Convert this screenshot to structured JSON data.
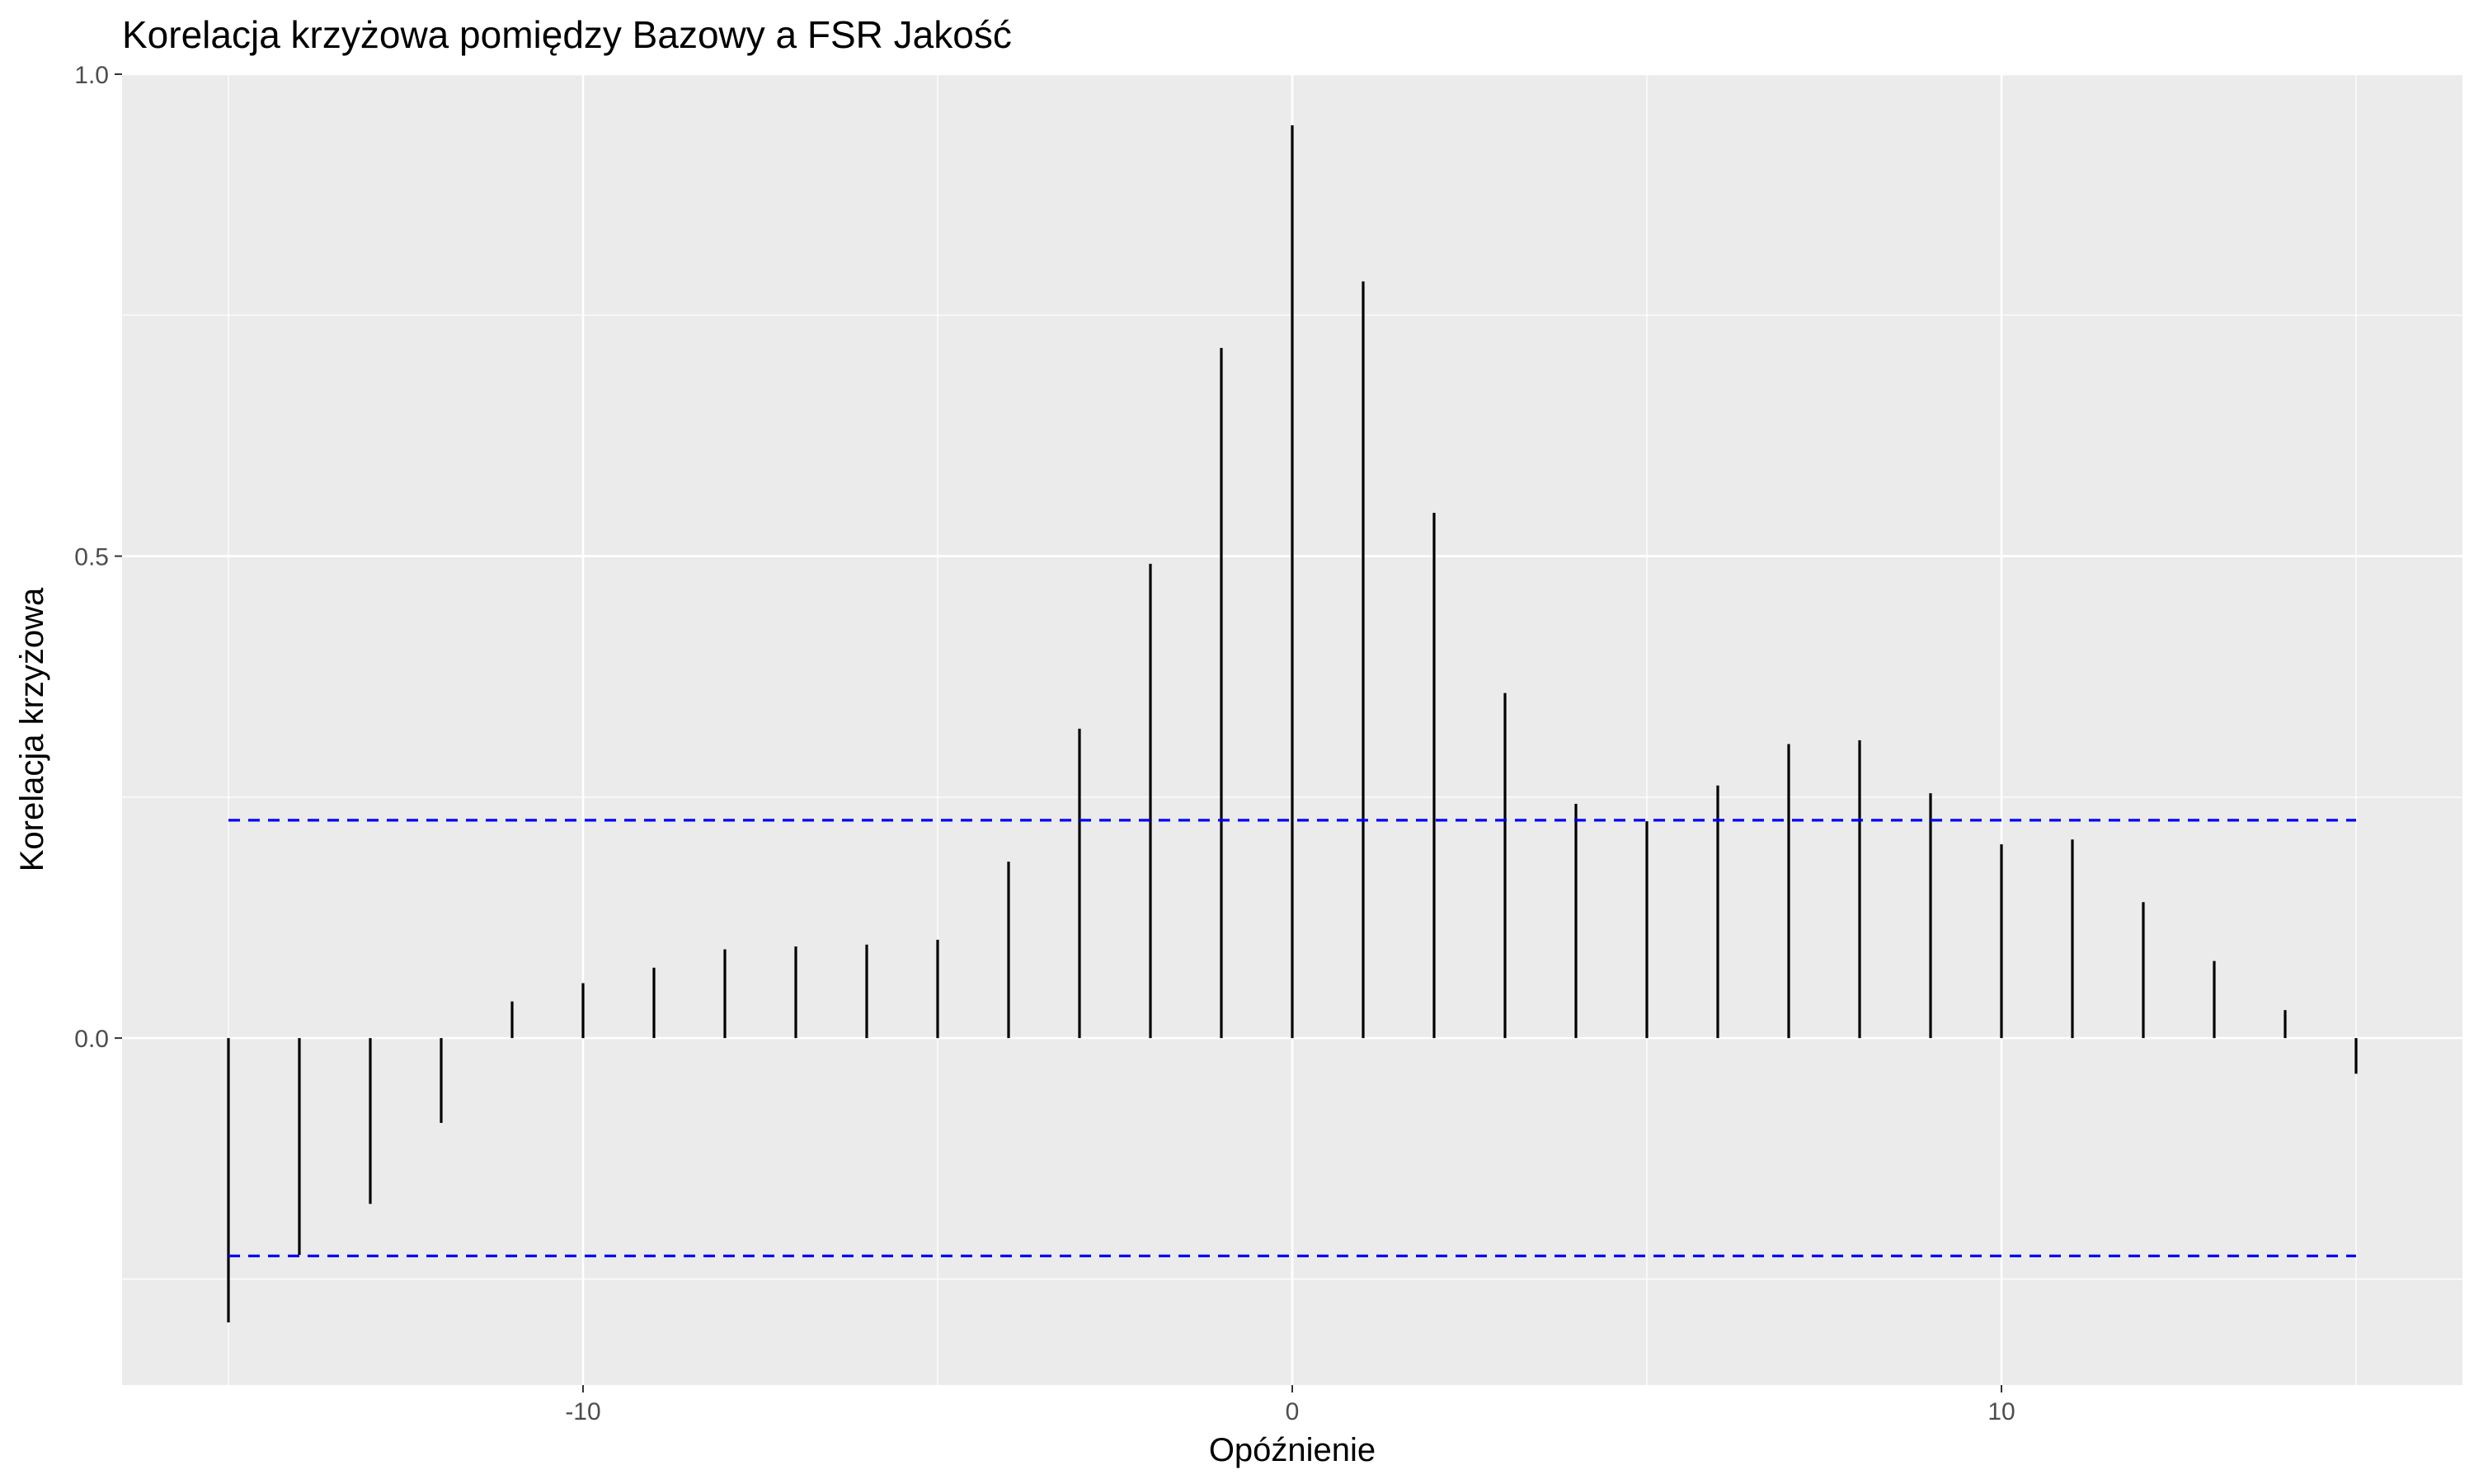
{
  "chart_data": {
    "type": "bar",
    "title": "Korelacja krzyżowa pomiędzy Bazowy a FSR Jakość",
    "xlabel": "Opóźnienie",
    "ylabel": "Korelacja krzyżowa",
    "x": [
      -15,
      -14,
      -13,
      -12,
      -11,
      -10,
      -9,
      -8,
      -7,
      -6,
      -5,
      -4,
      -3,
      -2,
      -1,
      0,
      1,
      2,
      3,
      4,
      5,
      6,
      7,
      8,
      9,
      10,
      11,
      12,
      13,
      14,
      15
    ],
    "values": [
      -0.295,
      -0.225,
      -0.172,
      -0.088,
      0.038,
      0.057,
      0.073,
      0.092,
      0.095,
      0.097,
      0.102,
      0.183,
      0.321,
      0.492,
      0.716,
      0.947,
      0.785,
      0.545,
      0.358,
      0.243,
      0.225,
      0.262,
      0.305,
      0.309,
      0.254,
      0.201,
      0.206,
      0.141,
      0.08,
      0.029,
      -0.037
    ],
    "confidence_bounds": [
      0.226,
      -0.226
    ],
    "xlim": [
      -16.5,
      16.5
    ],
    "ylim": [
      -0.36,
      1.0
    ],
    "x_ticks": [
      -10,
      0,
      10
    ],
    "x_tick_labels": [
      "-10",
      "0",
      "10"
    ],
    "y_ticks": [
      0.0,
      0.5,
      1.0
    ],
    "y_tick_labels": [
      "0.0",
      "0.5",
      "1.0"
    ],
    "grid": true,
    "colors": {
      "panel": "#ebebeb",
      "grid": "#ffffff",
      "bars": "#000000",
      "bounds": "#0000ff",
      "tick_text": "#4d4d4d"
    }
  }
}
